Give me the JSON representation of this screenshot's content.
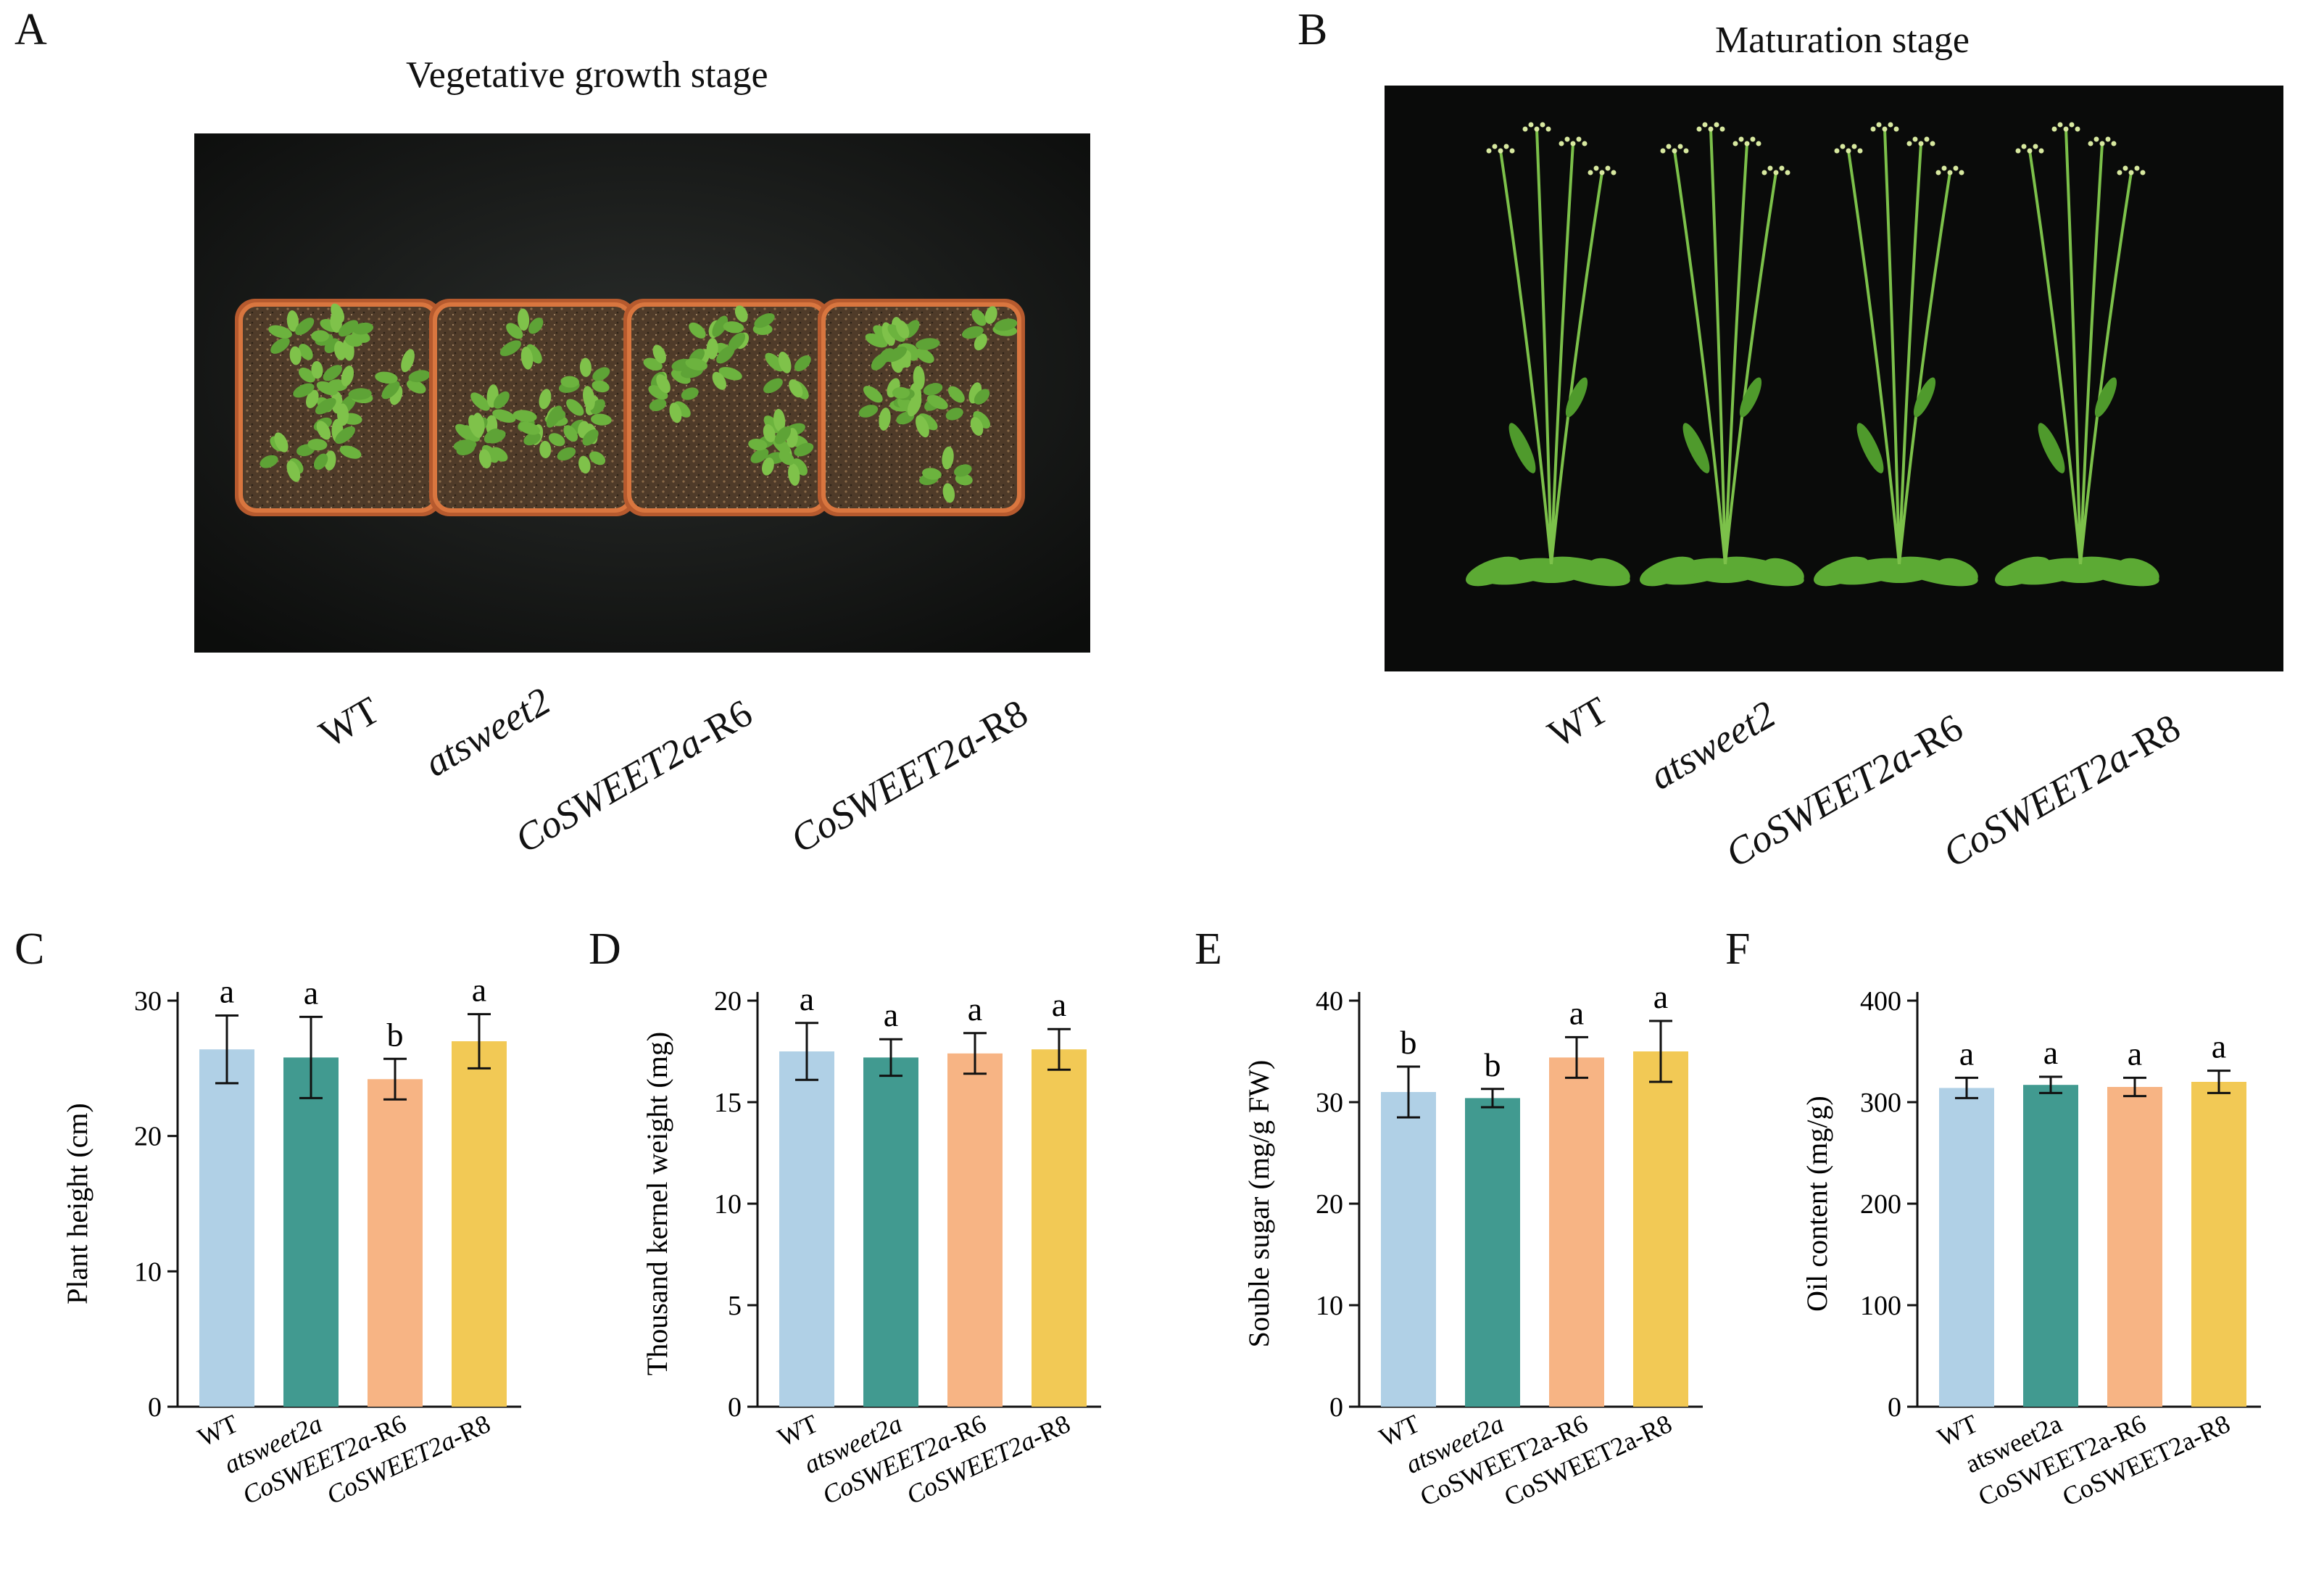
{
  "panels": {
    "A": "A",
    "B": "B",
    "C": "C",
    "D": "D",
    "E": "E",
    "F": "F"
  },
  "photo_a": {
    "title": "Vegetative growth stage",
    "labels": [
      {
        "italic": "",
        "plain": "WT"
      },
      {
        "italic": "atsweet2",
        "plain": ""
      },
      {
        "italic": "CoSWEET2a",
        "plain": "-R6"
      },
      {
        "italic": "CoSWEET2a",
        "plain": "-R8"
      }
    ]
  },
  "photo_b": {
    "title": "Maturation stage",
    "labels": [
      {
        "italic": "",
        "plain": "WT"
      },
      {
        "italic": "atsweet2",
        "plain": ""
      },
      {
        "italic": "CoSWEET2a",
        "plain": "-R6"
      },
      {
        "italic": "CoSWEET2a",
        "plain": "-R8"
      }
    ]
  },
  "colors": [
    "#b0d0e6",
    "#419a90",
    "#f7b484",
    "#f2c955"
  ],
  "chart_data": [
    {
      "type": "bar",
      "ylabel": "Plant height (cm)",
      "ylim": [
        0,
        30
      ],
      "yticks": [
        0,
        10,
        20,
        30
      ],
      "categories": [
        {
          "italic": "",
          "plain": "WT"
        },
        {
          "italic": "atsweet2a",
          "plain": ""
        },
        {
          "italic": "CoSWEET2a",
          "plain": "-R6"
        },
        {
          "italic": "CoSWEET2a",
          "plain": "-R8"
        }
      ],
      "values": [
        26.4,
        25.8,
        24.2,
        27.0
      ],
      "errors": [
        2.5,
        3.0,
        1.5,
        2.0
      ],
      "letters": [
        "a",
        "a",
        "b",
        "a"
      ]
    },
    {
      "type": "bar",
      "ylabel": "Thousand kernel weight (mg)",
      "ylim": [
        0,
        20
      ],
      "yticks": [
        0,
        5,
        10,
        15,
        20
      ],
      "categories": [
        {
          "italic": "",
          "plain": "WT"
        },
        {
          "italic": "atsweet2a",
          "plain": ""
        },
        {
          "italic": "CoSWEET2a",
          "plain": "-R6"
        },
        {
          "italic": "CoSWEET2a",
          "plain": "-R8"
        }
      ],
      "values": [
        17.5,
        17.2,
        17.4,
        17.6
      ],
      "errors": [
        1.4,
        0.9,
        1.0,
        1.0
      ],
      "letters": [
        "a",
        "a",
        "a",
        "a"
      ]
    },
    {
      "type": "bar",
      "ylabel": "Souble sugar (mg/g FW)",
      "ylim": [
        0,
        40
      ],
      "yticks": [
        0,
        10,
        20,
        30,
        40
      ],
      "categories": [
        {
          "italic": "",
          "plain": "WT"
        },
        {
          "italic": "atsweet2a",
          "plain": ""
        },
        {
          "italic": "",
          "plain": "CoSWEET2a-R6"
        },
        {
          "italic": "",
          "plain": "CoSWEET2a-R8"
        }
      ],
      "values": [
        31.0,
        30.4,
        34.4,
        35.0
      ],
      "errors": [
        2.5,
        0.9,
        2.0,
        3.0
      ],
      "letters": [
        "b",
        "b",
        "a",
        "a"
      ]
    },
    {
      "type": "bar",
      "ylabel": "Oil content (mg/g)",
      "ylim": [
        0,
        400
      ],
      "yticks": [
        0,
        100,
        200,
        300,
        400
      ],
      "categories": [
        {
          "italic": "",
          "plain": "WT"
        },
        {
          "italic": "",
          "plain": "atsweet2a"
        },
        {
          "italic": "",
          "plain": "CoSWEET2a-R6"
        },
        {
          "italic": "",
          "plain": "CoSWEET2a-R8"
        }
      ],
      "values": [
        314,
        317,
        315,
        320
      ],
      "errors": [
        10,
        8,
        9,
        11
      ],
      "letters": [
        "a",
        "a",
        "a",
        "a"
      ]
    }
  ]
}
